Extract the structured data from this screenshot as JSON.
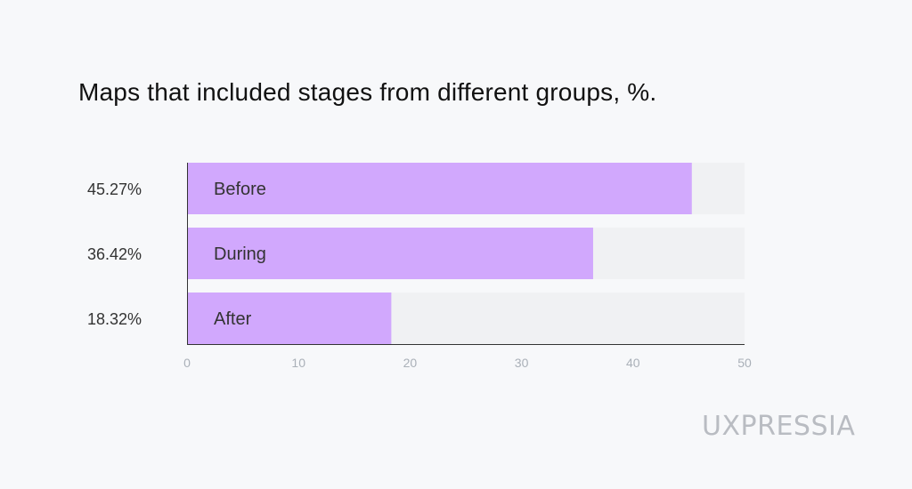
{
  "chart_data": {
    "type": "bar",
    "orientation": "horizontal",
    "title": "Maps that included stages from different groups, %.",
    "categories": [
      "Before",
      "During",
      "After"
    ],
    "values": [
      45.27,
      36.42,
      18.32
    ],
    "value_labels": [
      "45.27%",
      "36.42%",
      "18.32%"
    ],
    "xlim": [
      0,
      50
    ],
    "xticks": [
      0,
      10,
      20,
      30,
      40,
      50
    ],
    "grid": false,
    "legend": "none"
  },
  "colors": {
    "bar": "#d1a8fd",
    "track": "#f0f1f3",
    "axis": "#333333",
    "tick_text": "#aab0b8",
    "label_text": "#333333"
  },
  "brand": {
    "logo": "UXPRESSIA"
  }
}
